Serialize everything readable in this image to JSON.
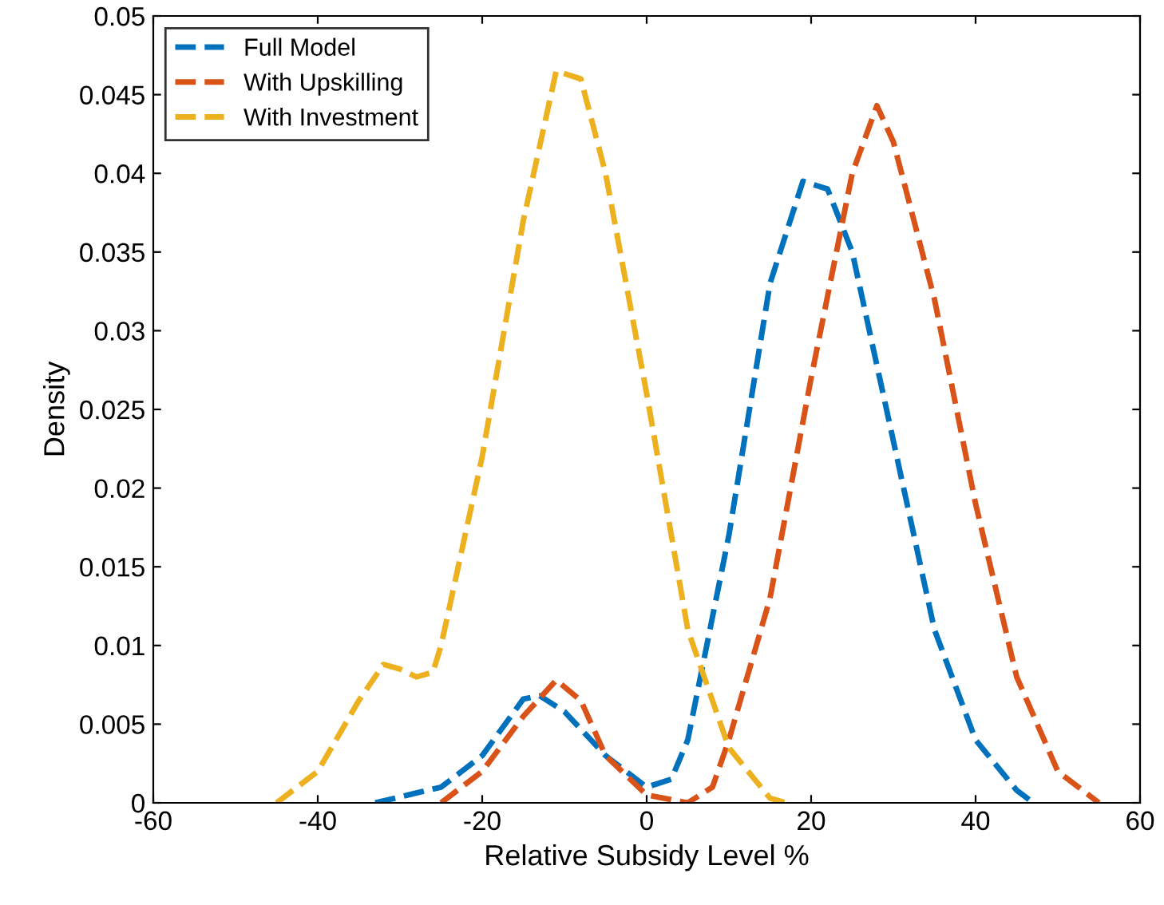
{
  "chart_data": {
    "type": "line",
    "xlabel": "Relative Subsidy Level %",
    "ylabel": "Density",
    "xlim": [
      -60,
      60
    ],
    "xticks": [
      -60,
      -40,
      -20,
      0,
      20,
      40,
      60
    ],
    "ylim": [
      0,
      0.05
    ],
    "yticks": [
      0,
      0.005,
      0.01,
      0.015,
      0.02,
      0.025,
      0.03,
      0.035,
      0.04,
      0.045,
      0.05
    ],
    "grid": false,
    "legend": "top left",
    "line_style": "dashed",
    "marker": "none",
    "series": [
      {
        "name": "Full Model",
        "color": "#0072bd",
        "x": [
          -33,
          -25,
          -20,
          -15,
          -13,
          -10,
          -5,
          0,
          3,
          5,
          10,
          15,
          19,
          22,
          25,
          30,
          35,
          40,
          45,
          47
        ],
        "values": [
          0,
          0.001,
          0.003,
          0.0066,
          0.0068,
          0.0058,
          0.003,
          0.001,
          0.0015,
          0.004,
          0.017,
          0.033,
          0.0395,
          0.039,
          0.035,
          0.023,
          0.011,
          0.004,
          0.0008,
          0
        ]
      },
      {
        "name": "With Upskilling",
        "color": "#d95319",
        "x": [
          -25,
          -20,
          -15,
          -11,
          -8,
          -5,
          0,
          5,
          8,
          10,
          15,
          20,
          25,
          28,
          30,
          35,
          40,
          45,
          50,
          55
        ],
        "values": [
          0,
          0.002,
          0.0055,
          0.0078,
          0.0065,
          0.003,
          0.0005,
          0,
          0.001,
          0.004,
          0.013,
          0.027,
          0.04,
          0.0443,
          0.042,
          0.032,
          0.019,
          0.008,
          0.002,
          0
        ]
      },
      {
        "name": "With Investment",
        "color": "#edb120",
        "x": [
          -45,
          -40,
          -35,
          -32,
          -30,
          -28,
          -26,
          -25,
          -20,
          -15,
          -11,
          -8,
          -5,
          0,
          5,
          10,
          15,
          17
        ],
        "values": [
          0,
          0.002,
          0.0065,
          0.0088,
          0.0085,
          0.008,
          0.0083,
          0.01,
          0.022,
          0.037,
          0.0465,
          0.046,
          0.04,
          0.026,
          0.011,
          0.0035,
          0.0003,
          0
        ]
      }
    ]
  }
}
